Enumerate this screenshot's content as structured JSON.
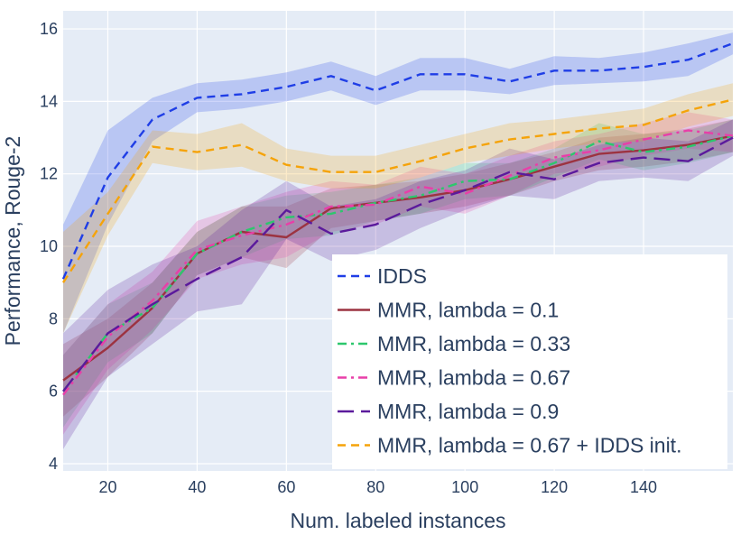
{
  "chart_data": {
    "type": "line",
    "title": "",
    "xlabel": "Num. labeled instances",
    "ylabel": "Performance, Rouge-2",
    "xlim": [
      10,
      160
    ],
    "ylim": [
      3.8,
      16.5
    ],
    "x_ticks": [
      20,
      40,
      60,
      80,
      100,
      120,
      140
    ],
    "y_ticks": [
      4,
      6,
      8,
      10,
      12,
      14,
      16
    ],
    "grid": true,
    "legend_position": "bottom-right",
    "plot_background": "#e5ecf6",
    "x": [
      10,
      20,
      30,
      40,
      50,
      60,
      70,
      80,
      90,
      100,
      110,
      120,
      130,
      140,
      150,
      160
    ],
    "series": [
      {
        "name": "IDDS",
        "color": "#1f3ee6",
        "dash": "dash",
        "values": [
          9.1,
          11.9,
          13.5,
          14.1,
          14.2,
          14.4,
          14.7,
          14.3,
          14.75,
          14.75,
          14.55,
          14.85,
          14.85,
          14.95,
          15.15,
          15.6
        ],
        "lower": [
          7.6,
          10.6,
          12.9,
          13.7,
          13.8,
          14.0,
          14.3,
          13.9,
          14.3,
          14.3,
          14.2,
          14.45,
          14.5,
          14.55,
          14.7,
          15.3
        ],
        "upper": [
          10.6,
          13.2,
          14.1,
          14.5,
          14.6,
          14.8,
          15.1,
          14.7,
          15.2,
          15.2,
          14.9,
          15.25,
          15.2,
          15.35,
          15.6,
          15.9
        ]
      },
      {
        "name": "MMR, lambda = 0.1",
        "color": "#9c3341",
        "dash": "solid",
        "values": [
          6.3,
          7.2,
          8.3,
          9.8,
          10.4,
          10.25,
          11.05,
          11.2,
          11.35,
          11.55,
          11.85,
          12.2,
          12.55,
          12.65,
          12.8,
          13.05
        ],
        "lower": [
          5.3,
          6.4,
          7.6,
          9.2,
          9.7,
          9.4,
          10.5,
          10.7,
          10.9,
          11.1,
          11.4,
          11.8,
          12.1,
          12.2,
          12.35,
          12.6
        ],
        "upper": [
          7.3,
          8.0,
          9.0,
          10.4,
          11.1,
          11.1,
          11.6,
          11.7,
          11.8,
          12.0,
          12.3,
          12.6,
          13.0,
          13.1,
          13.25,
          13.5
        ]
      },
      {
        "name": "MMR, lambda = 0.33",
        "color": "#2dc76d",
        "dash": "dashdot",
        "values": [
          6.0,
          7.6,
          8.3,
          9.8,
          10.4,
          10.8,
          10.9,
          11.2,
          11.4,
          11.8,
          11.85,
          12.3,
          12.9,
          12.6,
          12.75,
          13.05
        ],
        "lower": [
          5.0,
          6.8,
          7.6,
          9.2,
          9.7,
          10.2,
          10.3,
          10.7,
          10.9,
          11.3,
          11.4,
          11.9,
          12.4,
          12.1,
          12.3,
          12.6
        ],
        "upper": [
          7.0,
          8.4,
          9.0,
          10.4,
          11.1,
          11.4,
          11.5,
          11.7,
          11.9,
          12.3,
          12.3,
          12.7,
          13.4,
          13.1,
          13.2,
          13.5
        ]
      },
      {
        "name": "MMR, lambda = 0.67",
        "color": "#e83fa8",
        "dash": "dashdot",
        "values": [
          5.9,
          7.5,
          8.5,
          9.9,
          10.3,
          10.6,
          11.1,
          11.15,
          11.65,
          11.45,
          11.95,
          12.45,
          12.65,
          12.95,
          13.2,
          13.05
        ],
        "lower": [
          4.8,
          6.6,
          7.7,
          9.1,
          9.5,
          9.7,
          10.4,
          10.6,
          11.1,
          10.9,
          11.4,
          12.0,
          12.2,
          12.5,
          12.7,
          12.6
        ],
        "upper": [
          7.0,
          8.4,
          9.3,
          10.7,
          11.1,
          11.5,
          11.8,
          11.7,
          12.2,
          12.0,
          12.5,
          12.9,
          13.1,
          13.4,
          13.7,
          13.5
        ]
      },
      {
        "name": "MMR, lambda = 0.9",
        "color": "#5b1a9c",
        "dash": "longdash",
        "values": [
          6.0,
          7.6,
          8.4,
          9.1,
          9.7,
          11.0,
          10.35,
          10.6,
          11.15,
          11.55,
          12.05,
          11.85,
          12.3,
          12.45,
          12.35,
          13.0
        ],
        "lower": [
          4.4,
          6.4,
          7.3,
          8.2,
          8.4,
          10.2,
          9.6,
          9.9,
          10.5,
          11.0,
          11.4,
          11.3,
          11.8,
          11.9,
          11.8,
          12.5
        ],
        "upper": [
          7.6,
          8.8,
          9.5,
          10.0,
          11.0,
          11.8,
          11.1,
          11.3,
          11.8,
          12.1,
          12.7,
          12.4,
          12.8,
          13.0,
          12.9,
          13.5
        ]
      },
      {
        "name": "MMR, lambda = 0.67 + IDDS init.",
        "color": "#f5a30a",
        "dash": "dash",
        "values": [
          9.0,
          10.9,
          12.75,
          12.6,
          12.8,
          12.25,
          12.05,
          12.05,
          12.35,
          12.7,
          12.95,
          13.1,
          13.25,
          13.35,
          13.75,
          14.05
        ],
        "lower": [
          7.6,
          10.3,
          12.3,
          12.1,
          12.2,
          11.8,
          11.6,
          11.6,
          11.9,
          12.3,
          12.5,
          12.7,
          12.85,
          12.9,
          13.3,
          13.6
        ],
        "upper": [
          10.4,
          11.5,
          13.2,
          13.1,
          13.4,
          12.7,
          12.5,
          12.5,
          12.8,
          13.1,
          13.4,
          13.5,
          13.65,
          13.8,
          14.2,
          14.5
        ]
      }
    ]
  }
}
